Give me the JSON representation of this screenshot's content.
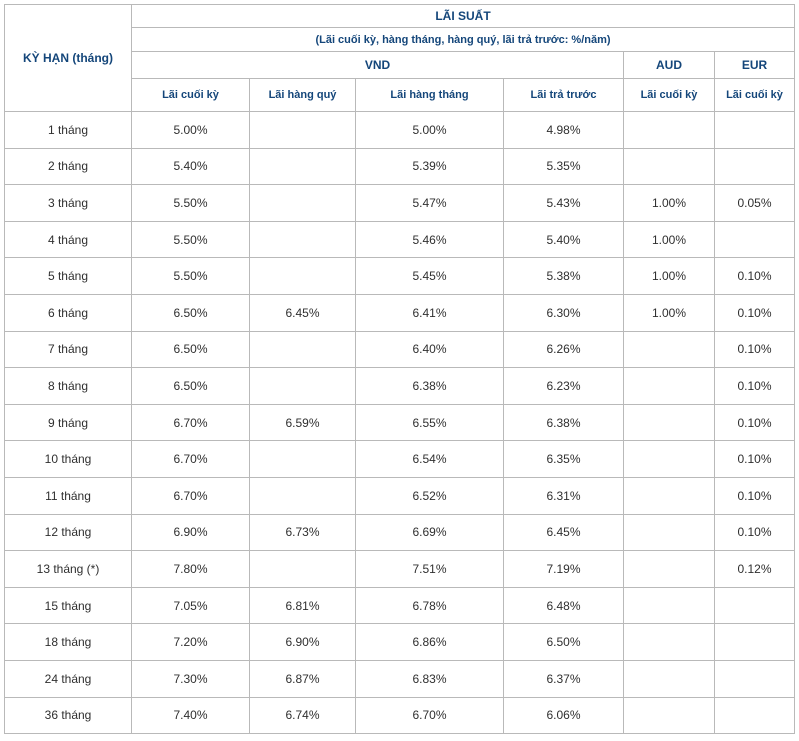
{
  "header": {
    "term": "KỲ HẠN (tháng)",
    "interest": "LÃI SUẤT",
    "note": "(Lãi cuối kỳ, hàng tháng, hàng quý, lãi trả trước: %/năm)",
    "vnd": "VND",
    "aud": "AUD",
    "eur": "EUR",
    "columns": [
      "Lãi cuối kỳ",
      "Lãi hàng quý",
      "Lãi hàng tháng",
      "Lãi trả trước",
      "Lãi cuối kỳ",
      "Lãi cuối kỳ"
    ]
  },
  "rows": [
    [
      "1 tháng",
      "5.00%",
      "",
      "5.00%",
      "4.98%",
      "",
      ""
    ],
    [
      "2 tháng",
      "5.40%",
      "",
      "5.39%",
      "5.35%",
      "",
      ""
    ],
    [
      "3 tháng",
      "5.50%",
      "",
      "5.47%",
      "5.43%",
      "1.00%",
      "0.05%"
    ],
    [
      "4 tháng",
      "5.50%",
      "",
      "5.46%",
      "5.40%",
      "1.00%",
      ""
    ],
    [
      "5 tháng",
      "5.50%",
      "",
      "5.45%",
      "5.38%",
      "1.00%",
      "0.10%"
    ],
    [
      "6 tháng",
      "6.50%",
      "6.45%",
      "6.41%",
      "6.30%",
      "1.00%",
      "0.10%"
    ],
    [
      "7 tháng",
      "6.50%",
      "",
      "6.40%",
      "6.26%",
      "",
      "0.10%"
    ],
    [
      "8 tháng",
      "6.50%",
      "",
      "6.38%",
      "6.23%",
      "",
      "0.10%"
    ],
    [
      "9 tháng",
      "6.70%",
      "6.59%",
      "6.55%",
      "6.38%",
      "",
      "0.10%"
    ],
    [
      "10 tháng",
      "6.70%",
      "",
      "6.54%",
      "6.35%",
      "",
      "0.10%"
    ],
    [
      "11 tháng",
      "6.70%",
      "",
      "6.52%",
      "6.31%",
      "",
      "0.10%"
    ],
    [
      "12 tháng",
      "6.90%",
      "6.73%",
      "6.69%",
      "6.45%",
      "",
      "0.10%"
    ],
    [
      "13 tháng (*)",
      "7.80%",
      "",
      "7.51%",
      "7.19%",
      "",
      "0.12%"
    ],
    [
      "15 tháng",
      "7.05%",
      "6.81%",
      "6.78%",
      "6.48%",
      "",
      ""
    ],
    [
      "18 tháng",
      "7.20%",
      "6.90%",
      "6.86%",
      "6.50%",
      "",
      ""
    ],
    [
      "24 tháng",
      "7.30%",
      "6.87%",
      "6.83%",
      "6.37%",
      "",
      ""
    ],
    [
      "36 tháng",
      "7.40%",
      "6.74%",
      "6.70%",
      "6.06%",
      "",
      ""
    ]
  ]
}
